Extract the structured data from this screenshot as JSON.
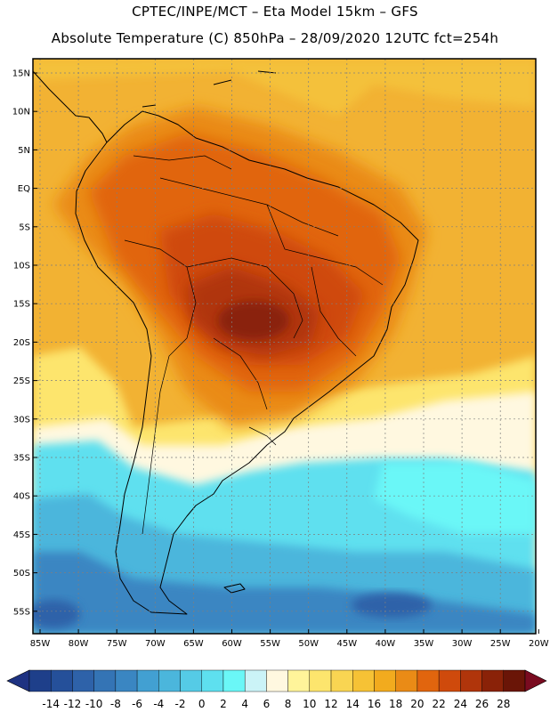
{
  "header": {
    "line1": "CPTEC/INPE/MCT –  Eta Model 15km – GFS",
    "line2": "Absolute Temperature (C) 850hPa – 28/09/2020 12UTC fct=254h"
  },
  "axes": {
    "lat_labels": [
      "15N",
      "10N",
      "5N",
      "EQ",
      "5S",
      "10S",
      "15S",
      "20S",
      "25S",
      "30S",
      "35S",
      "40S",
      "45S",
      "50S",
      "55S"
    ],
    "lon_labels": [
      "85W",
      "80W",
      "75W",
      "70W",
      "65W",
      "60W",
      "55W",
      "50W",
      "45W",
      "40W",
      "35W",
      "30W",
      "25W",
      "20W"
    ]
  },
  "colorbar": {
    "labels": [
      "-14",
      "-12",
      "-10",
      "-8",
      "-6",
      "-4",
      "-2",
      "0",
      "2",
      "4",
      "6",
      "8",
      "10",
      "12",
      "14",
      "16",
      "18",
      "20",
      "22",
      "24",
      "26",
      "28"
    ],
    "colors": [
      "#1e3f8a",
      "#25509a",
      "#2e62a9",
      "#3474b5",
      "#3a86c2",
      "#42a0d2",
      "#4bb6dc",
      "#55cbe6",
      "#5ee0ef",
      "#6af7f7",
      "#cbf3f7",
      "#fff8e0",
      "#fff49a",
      "#fde56d",
      "#f9d552",
      "#f6c235",
      "#f2ab1e",
      "#ea8b16",
      "#e1650e",
      "#cf4a0c",
      "#b0350b",
      "#8a2208",
      "#6a1507"
    ],
    "left_arrow_color": "#1e3282",
    "right_arrow_color": "#7a0b20"
  },
  "map": {
    "ocean_color": "#f2b233",
    "grid_color": "#7f7f7f"
  }
}
